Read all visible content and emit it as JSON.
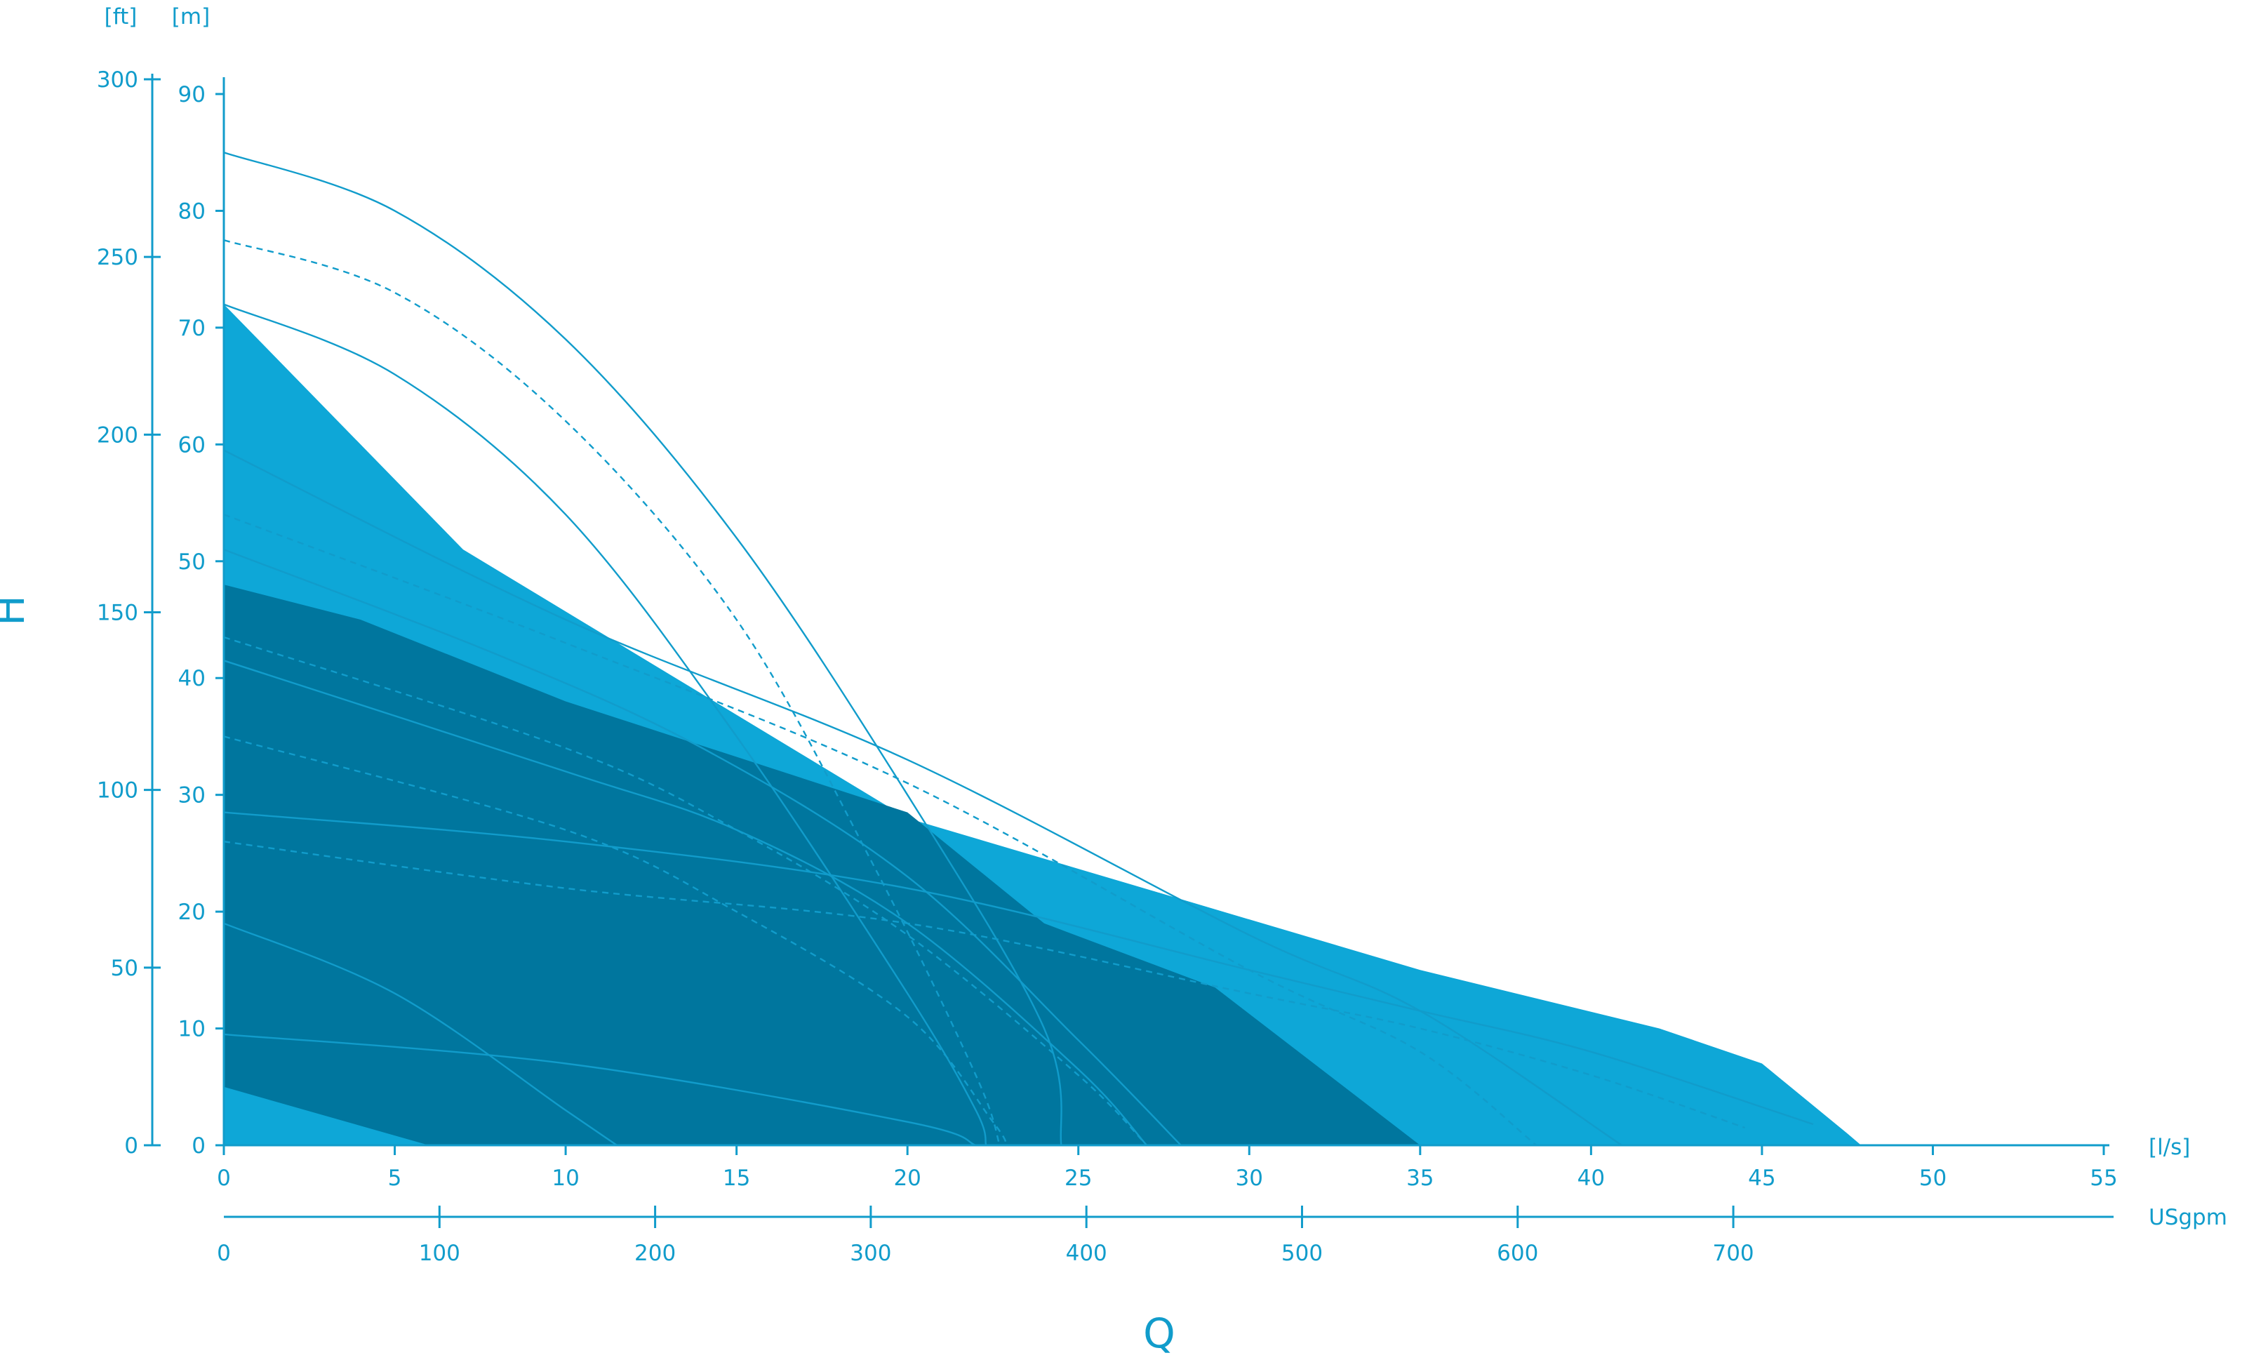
{
  "chart_data": {
    "type": "area",
    "colors": {
      "axis": "#119ccb",
      "band_light": "#85c4e3",
      "band_mid": "#0ea7d7",
      "band_dark": "#00769e",
      "curve": "#119ccb",
      "curve_on_dark": "#1a8fbd"
    },
    "y_axis_m": {
      "unit": "[m]",
      "ticks": [
        "0",
        "10",
        "20",
        "30",
        "40",
        "50",
        "60",
        "70",
        "80",
        "90"
      ],
      "range": [
        0,
        90
      ]
    },
    "y_axis_ft": {
      "unit": "[ft]",
      "ticks": [
        "0",
        "50",
        "100",
        "150",
        "200",
        "250",
        "300"
      ],
      "range": [
        0,
        300
      ]
    },
    "x_axis_ls": {
      "unit": "[l/s]",
      "ticks": [
        "0",
        "5",
        "10",
        "15",
        "20",
        "25",
        "30",
        "35",
        "40",
        "45",
        "50",
        "55"
      ],
      "range": [
        0,
        55
      ]
    },
    "x_axis_usgpm": {
      "unit": "USgpm",
      "ticks": [
        "0",
        "100",
        "200",
        "300",
        "400",
        "500",
        "600",
        "700"
      ],
      "range": [
        0,
        871.8
      ]
    },
    "y_title": "H",
    "x_title": "Q",
    "bands": [
      {
        "name": "light",
        "points": [
          [
            0,
            71
          ],
          [
            7,
            51
          ],
          [
            20,
            28
          ],
          [
            35,
            15
          ],
          [
            42,
            10
          ],
          [
            45,
            7
          ],
          [
            47.5,
            1
          ],
          [
            47.9,
            0
          ],
          [
            0,
            0
          ]
        ]
      },
      {
        "name": "mid",
        "points": [
          [
            0,
            72
          ],
          [
            7,
            51
          ],
          [
            20,
            28
          ],
          [
            35,
            15
          ],
          [
            42,
            10
          ],
          [
            45,
            7
          ],
          [
            47.5,
            1
          ],
          [
            47.9,
            0
          ],
          [
            0,
            0
          ]
        ]
      },
      {
        "name": "dark",
        "points": [
          [
            0,
            48
          ],
          [
            4,
            45
          ],
          [
            10,
            38
          ],
          [
            20,
            28.5
          ],
          [
            24,
            19
          ],
          [
            29,
            13.5
          ],
          [
            35,
            0
          ],
          [
            6,
            0
          ],
          [
            0,
            5
          ]
        ]
      }
    ],
    "curves": [
      {
        "style": "solid",
        "points": [
          [
            0,
            85
          ],
          [
            5,
            80
          ],
          [
            10,
            69
          ],
          [
            15,
            52
          ],
          [
            20,
            30
          ],
          [
            24,
            10
          ],
          [
            24.5,
            0
          ]
        ]
      },
      {
        "style": "dashed",
        "points": [
          [
            0,
            77.5
          ],
          [
            5,
            73
          ],
          [
            10,
            62
          ],
          [
            15,
            45
          ],
          [
            19,
            24
          ],
          [
            22,
            6
          ],
          [
            22.7,
            0
          ]
        ]
      },
      {
        "style": "solid",
        "points": [
          [
            0,
            72
          ],
          [
            5,
            66
          ],
          [
            10,
            54
          ],
          [
            15,
            35
          ],
          [
            20,
            13
          ],
          [
            22,
            3
          ],
          [
            22.3,
            0
          ]
        ]
      },
      {
        "style": "solid",
        "points": [
          [
            0,
            59.5
          ],
          [
            10,
            45
          ],
          [
            20,
            33
          ],
          [
            30,
            18
          ],
          [
            35,
            11.5
          ],
          [
            40.9,
            0
          ]
        ]
      },
      {
        "style": "dashed",
        "points": [
          [
            0,
            54
          ],
          [
            10,
            43
          ],
          [
            20,
            31
          ],
          [
            30,
            15
          ],
          [
            35,
            8
          ],
          [
            38.4,
            0
          ]
        ]
      },
      {
        "style": "solid",
        "points": [
          [
            0,
            51
          ],
          [
            8,
            42
          ],
          [
            14,
            34
          ],
          [
            20,
            23
          ],
          [
            25,
            9
          ],
          [
            28,
            0
          ]
        ]
      },
      {
        "style": "solid",
        "points": [
          [
            0,
            41.5
          ],
          [
            10,
            32
          ],
          [
            15,
            27
          ],
          [
            20,
            19
          ],
          [
            25,
            6.5
          ],
          [
            27,
            0
          ]
        ]
      },
      {
        "style": "dashed",
        "points": [
          [
            0,
            43.5
          ],
          [
            10,
            34
          ],
          [
            15,
            27
          ],
          [
            20,
            18
          ],
          [
            25,
            6
          ],
          [
            27,
            0
          ]
        ]
      },
      {
        "style": "dashed",
        "points": [
          [
            0,
            35
          ],
          [
            10,
            27
          ],
          [
            15,
            20
          ],
          [
            20,
            11
          ],
          [
            22.5,
            2
          ],
          [
            22.9,
            0
          ]
        ]
      },
      {
        "style": "solid",
        "points": [
          [
            0,
            28.5
          ],
          [
            10,
            26
          ],
          [
            20,
            22
          ],
          [
            30,
            15
          ],
          [
            35,
            11.5
          ],
          [
            40,
            8
          ],
          [
            46.5,
            1.8
          ]
        ]
      },
      {
        "style": "dashed",
        "points": [
          [
            0,
            26
          ],
          [
            10,
            22
          ],
          [
            20,
            19
          ],
          [
            30,
            13
          ],
          [
            35,
            10
          ],
          [
            40,
            6
          ],
          [
            44.5,
            1.5
          ]
        ]
      },
      {
        "style": "solid",
        "points": [
          [
            0,
            19
          ],
          [
            5,
            13
          ],
          [
            10,
            3
          ],
          [
            11.5,
            0
          ]
        ]
      },
      {
        "style": "solid",
        "points": [
          [
            0,
            9.5
          ],
          [
            10,
            7
          ],
          [
            20,
            2
          ],
          [
            22,
            0
          ]
        ]
      }
    ]
  }
}
